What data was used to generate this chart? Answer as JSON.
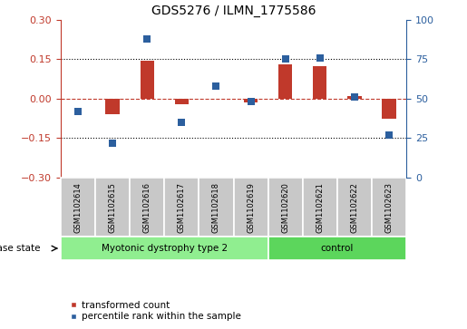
{
  "title": "GDS5276 / ILMN_1775586",
  "samples": [
    "GSM1102614",
    "GSM1102615",
    "GSM1102616",
    "GSM1102617",
    "GSM1102618",
    "GSM1102619",
    "GSM1102620",
    "GSM1102621",
    "GSM1102622",
    "GSM1102623"
  ],
  "transformed_count": [
    0.0,
    -0.06,
    0.145,
    -0.02,
    0.0,
    -0.015,
    0.13,
    0.125,
    0.01,
    -0.075
  ],
  "percentile_rank": [
    42,
    22,
    88,
    35,
    58,
    48,
    75,
    76,
    51,
    27
  ],
  "ylim_left": [
    -0.3,
    0.3
  ],
  "ylim_right": [
    0,
    100
  ],
  "yticks_left": [
    -0.3,
    -0.15,
    0.0,
    0.15,
    0.3
  ],
  "yticks_right": [
    0,
    25,
    50,
    75,
    100
  ],
  "hlines": [
    0.0,
    0.15,
    -0.15
  ],
  "bar_color": "#c0392b",
  "dot_color": "#2c5f9e",
  "bar_width": 0.4,
  "dot_size": 35,
  "group1_label": "Myotonic dystrophy type 2",
  "group2_label": "control",
  "group1_indices": [
    0,
    1,
    2,
    3,
    4,
    5
  ],
  "group2_indices": [
    6,
    7,
    8,
    9
  ],
  "group1_color": "#90ee90",
  "group2_color": "#5cd65c",
  "sample_box_color": "#c8c8c8",
  "disease_state_label": "disease state",
  "legend_bar_label": "transformed count",
  "legend_dot_label": "percentile rank within the sample",
  "fig_width": 5.15,
  "fig_height": 3.63,
  "dpi": 100
}
